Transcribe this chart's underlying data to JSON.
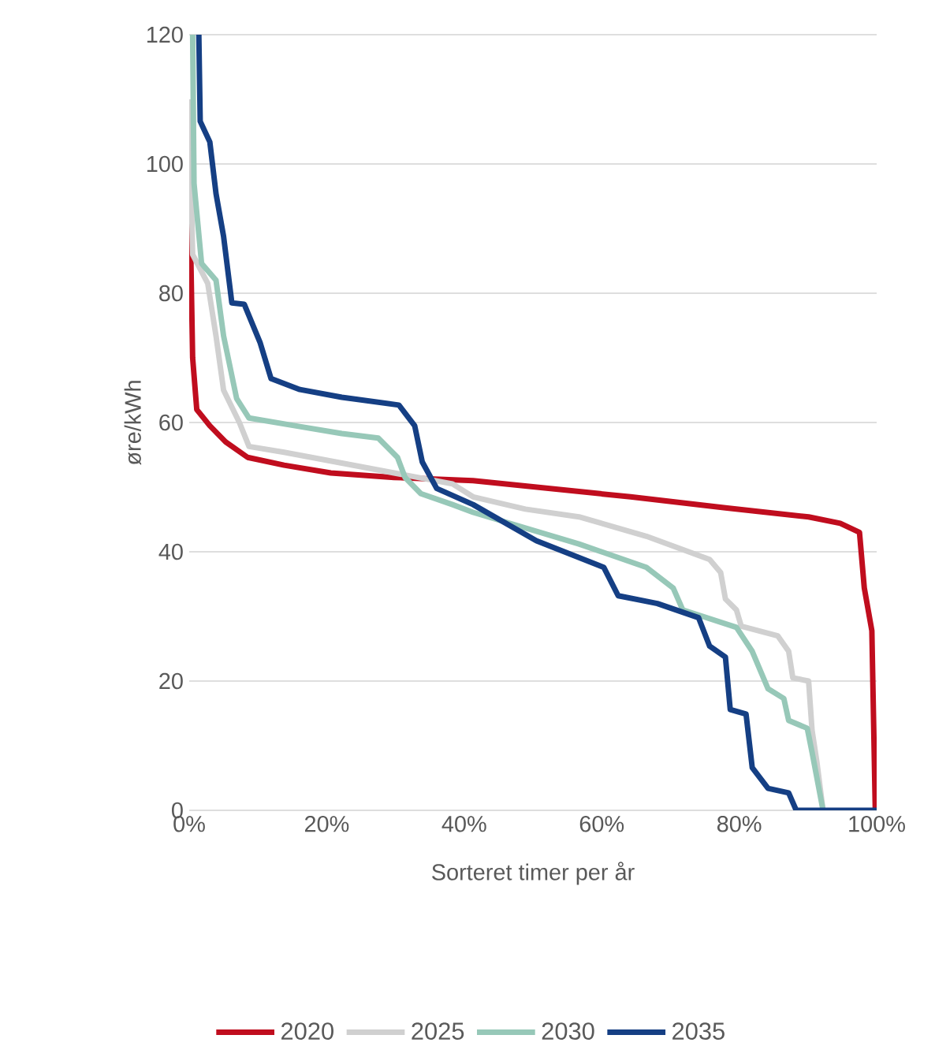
{
  "chart_data": {
    "type": "line",
    "xlabel": "Sorteret timer per år",
    "ylabel": "øre/kWh",
    "xlim": [
      0,
      100
    ],
    "ylim": [
      0,
      120
    ],
    "xticks": [
      {
        "value": 0,
        "label": "0%"
      },
      {
        "value": 20,
        "label": "20%"
      },
      {
        "value": 40,
        "label": "40%"
      },
      {
        "value": 60,
        "label": "60%"
      },
      {
        "value": 80,
        "label": "80%"
      },
      {
        "value": 100,
        "label": "100%"
      }
    ],
    "yticks": [
      0,
      20,
      40,
      60,
      80,
      100,
      120
    ],
    "grid": "y",
    "legend": "bottom",
    "marker": "none",
    "line_style": "solid",
    "series": [
      {
        "name": "2020",
        "color": "#c00d1e",
        "x": [
          0,
          0.5,
          1.1,
          3,
          5.3,
          8.5,
          13.8,
          20.6,
          29.8,
          41.3,
          64.2,
          78,
          90.1,
          94.7,
          97.5,
          98.2,
          99.3,
          99.8,
          100
        ],
        "values": [
          100,
          70,
          62,
          59.5,
          57,
          54.6,
          53.4,
          52.2,
          51.5,
          51,
          48.5,
          46.8,
          45.4,
          44.4,
          43,
          34.4,
          27.8,
          0,
          0
        ]
      },
      {
        "name": "2025",
        "color": "#d0d0d0",
        "x": [
          0,
          0.5,
          2.7,
          3.9,
          5,
          7.3,
          8.7,
          13.8,
          21.3,
          29.8,
          38.3,
          41.3,
          48.9,
          56.7,
          66.5,
          75.7,
          77.3,
          78,
          79.6,
          80.3,
          85.6,
          87.2,
          87.8,
          90.1,
          90.6,
          91.3,
          92.2
        ],
        "values": [
          110,
          86,
          81.5,
          73.4,
          65,
          60,
          56.3,
          55.4,
          53.9,
          52.2,
          50.5,
          48.5,
          46.6,
          45.4,
          42.4,
          38.8,
          36.8,
          32.7,
          31,
          28.5,
          27,
          24.6,
          20.5,
          20,
          12.4,
          7.5,
          0
        ]
      },
      {
        "name": "2030",
        "color": "#97c8b8",
        "x": [
          0.5,
          0.7,
          1.8,
          3.9,
          5,
          6.9,
          8.7,
          15.4,
          22.2,
          27.5,
          30.3,
          31.4,
          33.7,
          38.3,
          41.3,
          56.7,
          66.5,
          70.4,
          71.8,
          79.6,
          81.9,
          84.2,
          86.5,
          87.2,
          89.9,
          90.6,
          92.2
        ],
        "values": [
          120,
          97,
          84.6,
          82,
          73.4,
          63.7,
          60.7,
          59.5,
          58.3,
          57.6,
          54.6,
          51.5,
          49,
          47.3,
          46.1,
          41.2,
          37.6,
          34.4,
          31,
          28.3,
          24.6,
          18.8,
          17.3,
          13.9,
          12.7,
          9,
          0
        ]
      },
      {
        "name": "2035",
        "color": "#153f84",
        "x": [
          1.4,
          1.6,
          3,
          3.9,
          5,
          6.2,
          8,
          10.3,
          11.9,
          16.1,
          22.2,
          30.5,
          32.8,
          33.9,
          36,
          41.3,
          50.5,
          60.3,
          62.4,
          68.1,
          74.1,
          75.7,
          78,
          78.7,
          81,
          81.9,
          84.2,
          87.2,
          88.3,
          100
        ],
        "values": [
          120,
          106.6,
          103.4,
          95.4,
          88.8,
          78.5,
          78.3,
          72.4,
          66.8,
          65.1,
          63.9,
          62.7,
          59.5,
          53.9,
          49.8,
          47.3,
          41.7,
          37.6,
          33.2,
          32,
          29.8,
          25.4,
          23.7,
          15.6,
          14.9,
          6.6,
          3.4,
          2.7,
          0,
          0
        ]
      }
    ]
  }
}
